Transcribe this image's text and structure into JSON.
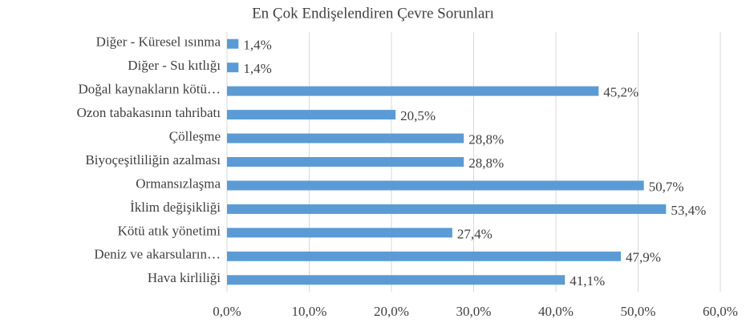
{
  "chart_data": {
    "type": "bar",
    "orientation": "horizontal",
    "title": "En Çok Endişelendiren Çevre Sorunları",
    "categories": [
      "Diğer - Küresel ısınma",
      "Diğer - Su kıtlığı",
      "Doğal kaynakların kötü…",
      "Ozon tabakasının tahribatı",
      "Çölleşme",
      "Biyoçeşitliliğin azalması",
      "Ormansızlaşma",
      "İklim değişikliği",
      "Kötü atık yönetimi",
      "Deniz ve akarsuların…",
      "Hava kirliliği"
    ],
    "values": [
      1.4,
      1.4,
      45.2,
      20.5,
      28.8,
      28.8,
      50.7,
      53.4,
      27.4,
      47.9,
      41.1
    ],
    "value_labels": [
      "1,4%",
      "1,4%",
      "45,2%",
      "20,5%",
      "28,8%",
      "28,8%",
      "50,7%",
      "53,4%",
      "27,4%",
      "47,9%",
      "41,1%"
    ],
    "color": "#5b9bd5",
    "xlim": [
      0,
      60
    ],
    "xticks": [
      {
        "value": 0,
        "label": "0,0%"
      },
      {
        "value": 10,
        "label": "10,0%"
      },
      {
        "value": 20,
        "label": "20,0%"
      },
      {
        "value": 30,
        "label": "30,0%"
      },
      {
        "value": 40,
        "label": "40,0%"
      },
      {
        "value": 50,
        "label": "50,0%"
      },
      {
        "value": 60,
        "label": "60,0%"
      }
    ],
    "grid": true
  }
}
